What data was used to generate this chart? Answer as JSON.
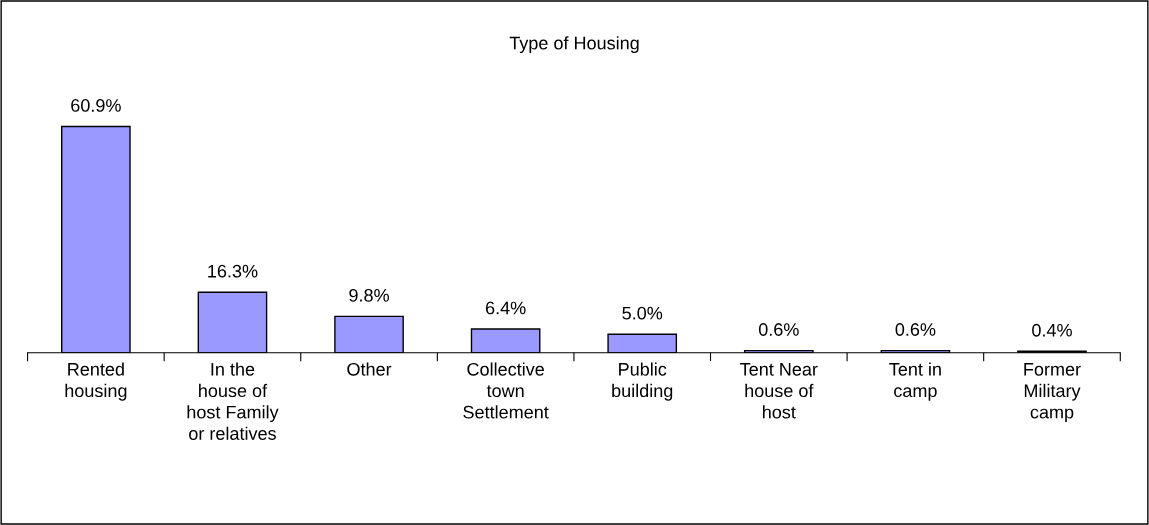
{
  "chart_data": {
    "type": "bar",
    "title": "Type of Housing",
    "categories": [
      "Rented\nhousing",
      "In the\nhouse of\nhost Family\nor relatives",
      "Other",
      "Collective\ntown\nSettlement",
      "Public\nbuilding",
      "Tent Near\nhouse of\nhost",
      "Tent in\ncamp",
      "Former\nMilitary\ncamp"
    ],
    "values": [
      60.9,
      16.3,
      9.8,
      6.4,
      5.0,
      0.6,
      0.6,
      0.4
    ],
    "value_labels": [
      "60.9%",
      "16.3%",
      "9.8%",
      "6.4%",
      "5.0%",
      "0.6%",
      "0.6%",
      "0.4%"
    ],
    "color": "#9999ff",
    "grid": false,
    "legend": false
  }
}
